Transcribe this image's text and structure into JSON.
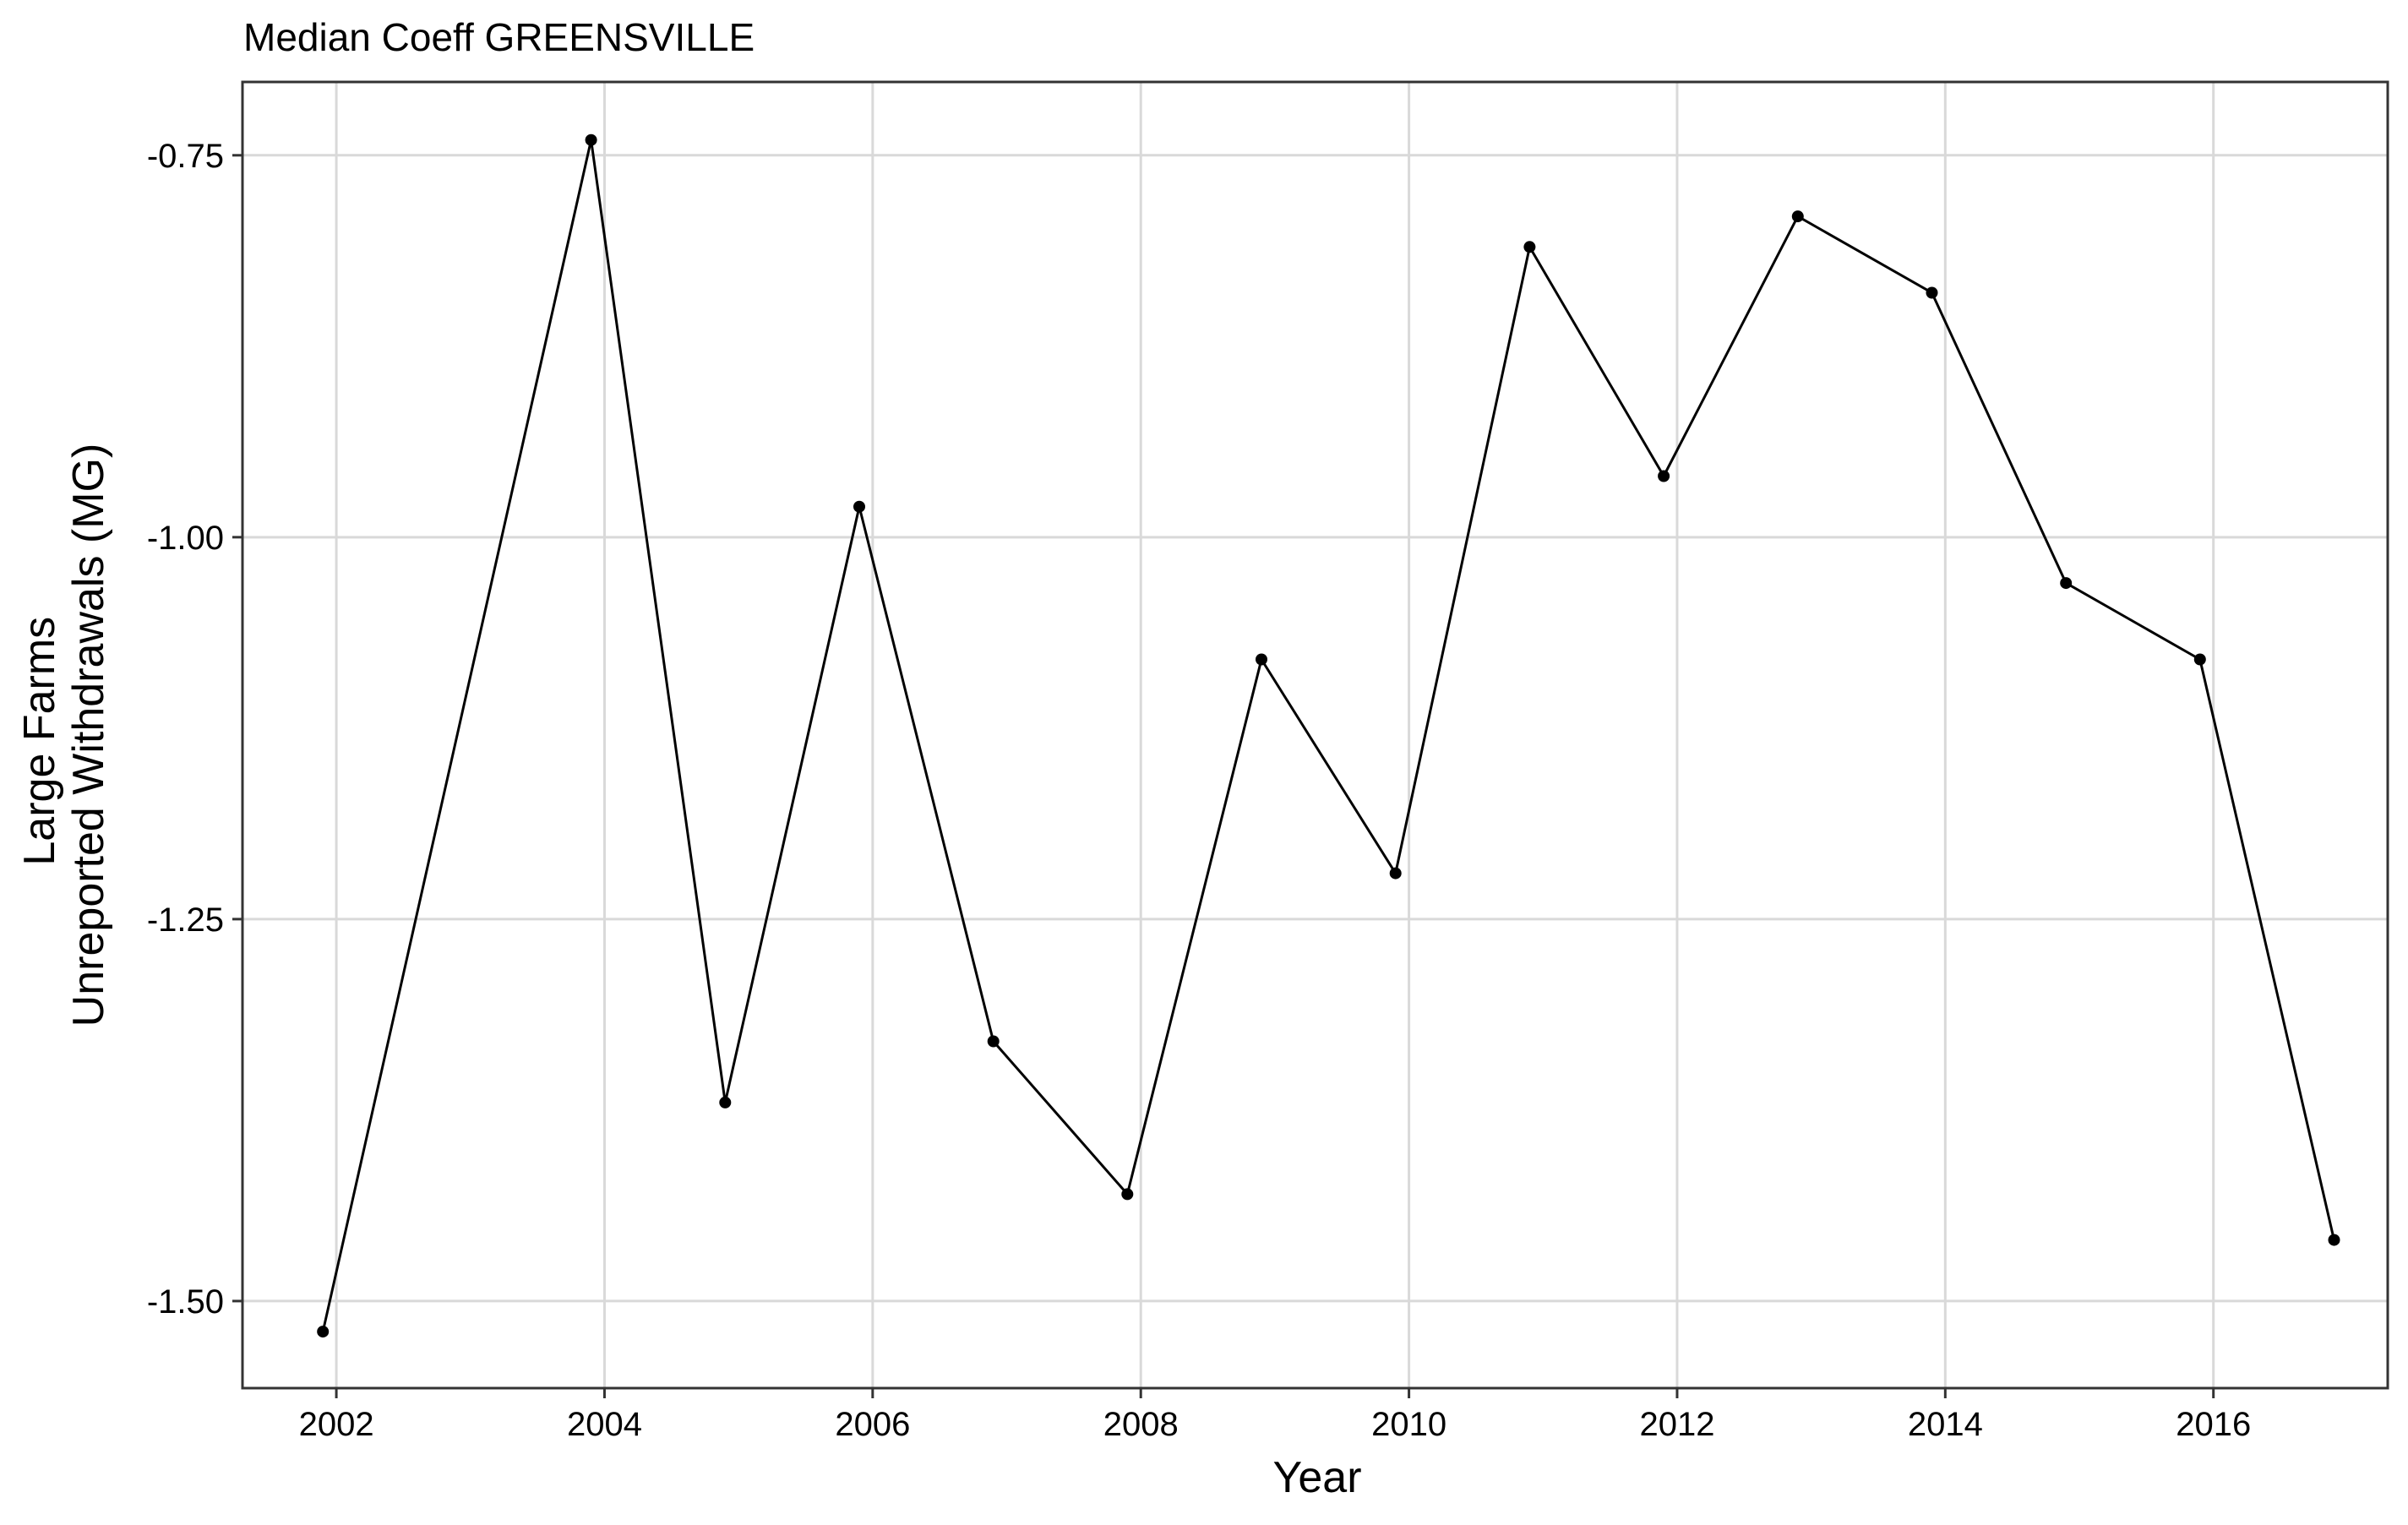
{
  "chart_data": {
    "type": "line",
    "title": "Median Coeff GREENSVILLE",
    "xlabel": "Year",
    "ylabel_lines": [
      "Large Farms",
      "Unreported Withdrawals (MG)"
    ],
    "x": [
      2001.9,
      2003.9,
      2004.9,
      2005.9,
      2006.9,
      2007.9,
      2008.9,
      2009.9,
      2010.9,
      2011.9,
      2012.9,
      2013.9,
      2014.9,
      2015.9,
      2016.9
    ],
    "y": [
      -1.52,
      -0.74,
      -1.37,
      -0.98,
      -1.33,
      -1.43,
      -1.08,
      -1.22,
      -0.81,
      -0.96,
      -0.79,
      -0.84,
      -1.03,
      -1.08,
      -1.46
    ],
    "xlim": [
      2001.3,
      2017.3
    ],
    "ylim": [
      -1.557,
      -0.702
    ],
    "xticks": [
      2002,
      2004,
      2006,
      2008,
      2010,
      2012,
      2014,
      2016
    ],
    "xtick_labels": [
      "2002",
      "2004",
      "2006",
      "2008",
      "2010",
      "2012",
      "2014",
      "2016"
    ],
    "yticks": [
      -1.5,
      -1.25,
      -1.0,
      -0.75
    ],
    "ytick_labels": [
      "-1.50",
      "-1.25",
      "-1.00",
      "-0.75"
    ],
    "grid": true,
    "colors": {
      "line": "#000000",
      "point": "#000000",
      "grid": "#d9d9d9",
      "panel_border": "#333333",
      "background": "#ffffff"
    }
  }
}
